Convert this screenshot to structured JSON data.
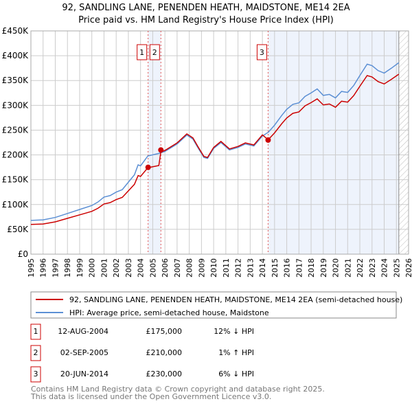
{
  "chart_data": {
    "type": "line",
    "title": "92, SANDLING LANE, PENENDEN HEATH, MAIDSTONE, ME14 2EA",
    "subtitle": "Price paid vs. HM Land Registry's House Price Index (HPI)",
    "xlim": [
      1995,
      2026
    ],
    "ylim": [
      0,
      450000
    ],
    "yticks": [
      {
        "v": 0,
        "l": "£0"
      },
      {
        "v": 50000,
        "l": "£50K"
      },
      {
        "v": 100000,
        "l": "£100K"
      },
      {
        "v": 150000,
        "l": "£150K"
      },
      {
        "v": 200000,
        "l": "£200K"
      },
      {
        "v": 250000,
        "l": "£250K"
      },
      {
        "v": 300000,
        "l": "£300K"
      },
      {
        "v": 350000,
        "l": "£350K"
      },
      {
        "v": 400000,
        "l": "£400K"
      },
      {
        "v": 450000,
        "l": "£450K"
      }
    ],
    "xticks": [
      "1995",
      "1996",
      "1997",
      "1998",
      "1999",
      "2000",
      "2001",
      "2002",
      "2003",
      "2004",
      "2005",
      "2006",
      "2007",
      "2008",
      "2009",
      "2010",
      "2011",
      "2012",
      "2013",
      "2014",
      "2015",
      "2016",
      "2017",
      "2018",
      "2019",
      "2020",
      "2021",
      "2022",
      "2023",
      "2024",
      "2025",
      "2026"
    ],
    "data_end": 2025.2,
    "series": [
      {
        "name": "HPI: Average price, semi-detached house, Maidstone",
        "color": "#5b8fd4",
        "x": [
          1995,
          1996,
          1997,
          1998,
          1999,
          2000,
          2000.5,
          2001,
          2001.5,
          2002,
          2002.5,
          2003,
          2003.5,
          2003.8,
          2004,
          2004.6,
          2005.5,
          2006,
          2007,
          2007.8,
          2008.3,
          2008.7,
          2009.2,
          2009.5,
          2010,
          2010.6,
          2011.3,
          2012,
          2012.6,
          2013.3,
          2014,
          2014.5,
          2015,
          2015.6,
          2016,
          2016.5,
          2017,
          2017.5,
          2018,
          2018.5,
          2019,
          2019.5,
          2020,
          2020.5,
          2021,
          2021.5,
          2022,
          2022.6,
          2023,
          2023.5,
          2024,
          2024.6,
          2025.2
        ],
        "y": [
          68000,
          69000,
          74000,
          82000,
          90000,
          98000,
          105000,
          115000,
          118000,
          125000,
          130000,
          145000,
          160000,
          180000,
          178000,
          198000,
          203000,
          207000,
          222000,
          240000,
          232000,
          215000,
          195000,
          193000,
          213000,
          225000,
          210000,
          215000,
          222000,
          218000,
          238000,
          246000,
          260000,
          280000,
          292000,
          302000,
          305000,
          318000,
          325000,
          333000,
          320000,
          322000,
          315000,
          328000,
          326000,
          340000,
          360000,
          383000,
          380000,
          370000,
          365000,
          375000,
          386000
        ]
      },
      {
        "name": "92, SANDLING LANE, PENENDEN HEATH, MAIDSTONE, ME14 2EA (semi-detached house)",
        "color": "#cc0000",
        "ratio_segments": [
          {
            "from": 1995,
            "to": 2004.62,
            "ratio": 0.88
          },
          {
            "from": 2004.62,
            "to": 2005.67,
            "ratio": 0.88
          },
          {
            "from": 2005.67,
            "to": 2014.47,
            "ratio": 1.01
          },
          {
            "from": 2014.47,
            "to": 2025.2,
            "ratio": 0.94
          }
        ]
      }
    ],
    "sales": [
      {
        "n": "1",
        "x": 2004.62,
        "y": 175000,
        "date": "12-AUG-2004",
        "price": "£175,000",
        "hpi": "12% ↓ HPI"
      },
      {
        "n": "2",
        "x": 2005.67,
        "y": 210000,
        "date": "02-SEP-2005",
        "price": "£210,000",
        "hpi": "1% ↑ HPI"
      },
      {
        "n": "3",
        "x": 2014.47,
        "y": 230000,
        "date": "20-JUN-2014",
        "price": "£230,000",
        "hpi": "6% ↓ HPI"
      }
    ]
  },
  "legend": {
    "red": "92, SANDLING LANE, PENENDEN HEATH, MAIDSTONE, ME14 2EA (semi-detached house)",
    "blue": "HPI: Average price, semi-detached house, Maidstone"
  },
  "footer": {
    "line1": "Contains HM Land Registry data © Crown copyright and database right 2025.",
    "line2": "This data is licensed under the Open Government Licence v3.0."
  }
}
